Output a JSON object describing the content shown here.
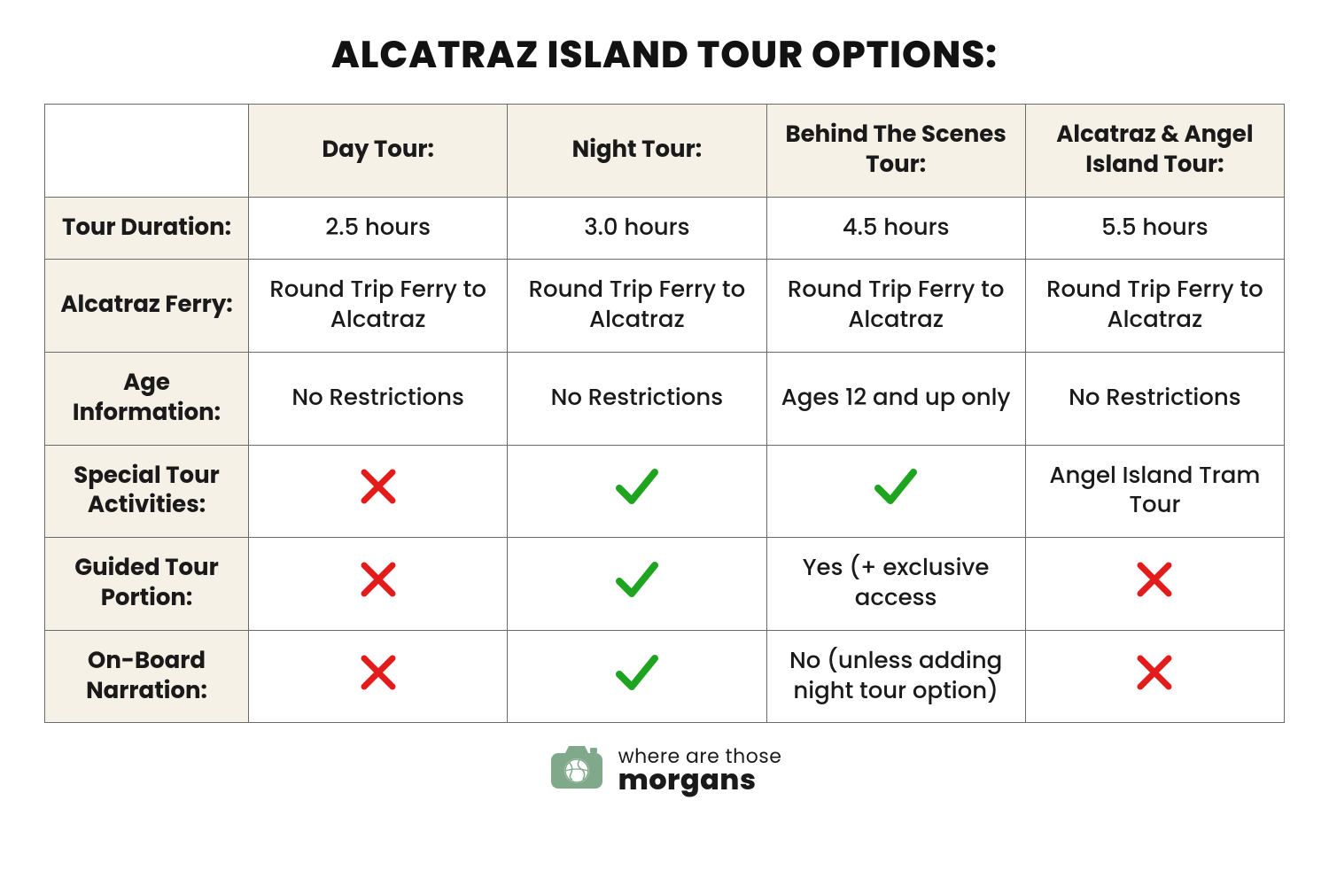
{
  "title": "ALCATRAZ ISLAND TOUR OPTIONS:",
  "colors": {
    "header_bg": "#f6f1e7",
    "border": "#6b6b6b",
    "text": "#1a1a1a",
    "check": "#1fa41f",
    "cross": "#e21b1b",
    "logo_green": "#7fa98a",
    "logo_dark": "#3d3d3d",
    "background": "#ffffff"
  },
  "typography": {
    "title_fontsize": 42,
    "title_weight": 800,
    "cell_fontsize": 26,
    "header_weight": 700,
    "cell_weight": 500
  },
  "columns": [
    "Day Tour:",
    "Night Tour:",
    "Behind The Scenes Tour:",
    "Alcatraz & Angel Island Tour:"
  ],
  "rows": [
    {
      "label": "Tour Duration:",
      "cells": [
        {
          "type": "text",
          "value": "2.5 hours"
        },
        {
          "type": "text",
          "value": "3.0 hours"
        },
        {
          "type": "text",
          "value": "4.5 hours"
        },
        {
          "type": "text",
          "value": "5.5 hours"
        }
      ]
    },
    {
      "label": "Alcatraz Ferry:",
      "cells": [
        {
          "type": "text",
          "value": "Round Trip Ferry to Alcatraz"
        },
        {
          "type": "text",
          "value": "Round Trip Ferry to Alcatraz"
        },
        {
          "type": "text",
          "value": "Round Trip Ferry to Alcatraz"
        },
        {
          "type": "text",
          "value": "Round Trip Ferry to Alcatraz"
        }
      ]
    },
    {
      "label": "Age Information:",
      "cells": [
        {
          "type": "text",
          "value": "No Restrictions"
        },
        {
          "type": "text",
          "value": "No Restrictions"
        },
        {
          "type": "text",
          "value": "Ages 12 and up only"
        },
        {
          "type": "text",
          "value": "No Restrictions"
        }
      ]
    },
    {
      "label": "Special Tour Activities:",
      "cells": [
        {
          "type": "cross"
        },
        {
          "type": "check"
        },
        {
          "type": "check"
        },
        {
          "type": "text",
          "value": "Angel Island Tram Tour"
        }
      ]
    },
    {
      "label": "Guided Tour Portion:",
      "cells": [
        {
          "type": "cross"
        },
        {
          "type": "check"
        },
        {
          "type": "text",
          "value": "Yes (+ exclusive access"
        },
        {
          "type": "cross"
        }
      ]
    },
    {
      "label": "On-Board Narration:",
      "cells": [
        {
          "type": "cross"
        },
        {
          "type": "check"
        },
        {
          "type": "text",
          "value": "No (unless adding night tour option)"
        },
        {
          "type": "cross"
        }
      ]
    }
  ],
  "footer": {
    "line1": "where are those",
    "line2": "morgans"
  }
}
